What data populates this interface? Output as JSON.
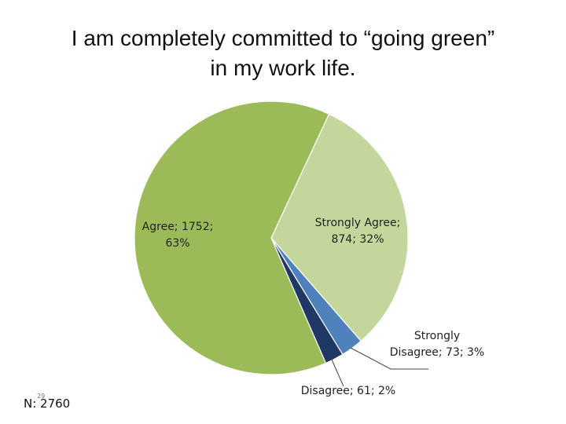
{
  "slide": {
    "title_lines": [
      "I am completely committed to “going green”",
      "in my work life."
    ],
    "sample_label": "N: 2760",
    "page_number": "29"
  },
  "chart_data": {
    "type": "pie",
    "title": "I am completely committed to “going green” in my work life.",
    "slices": [
      {
        "category": "Strongly Agree",
        "value": 874,
        "percent": 32,
        "color": "#c3d69b",
        "label_lines": [
          "Strongly Agree;",
          "874; 32%"
        ]
      },
      {
        "category": "Strongly Disagree",
        "value": 73,
        "percent": 3,
        "color": "#4f81bd",
        "label_lines": [
          "Strongly",
          "Disagree; 73; 3%"
        ]
      },
      {
        "category": "Disagree",
        "value": 61,
        "percent": 2,
        "color": "#1f3864",
        "label_lines": [
          "Disagree; 61; 2%"
        ]
      },
      {
        "category": "Agree",
        "value": 1752,
        "percent": 63,
        "color": "#9bbb59",
        "label_lines": [
          "Agree; 1752;",
          "63%"
        ]
      }
    ],
    "start_angle_deg": 25,
    "direction": "clockwise"
  }
}
